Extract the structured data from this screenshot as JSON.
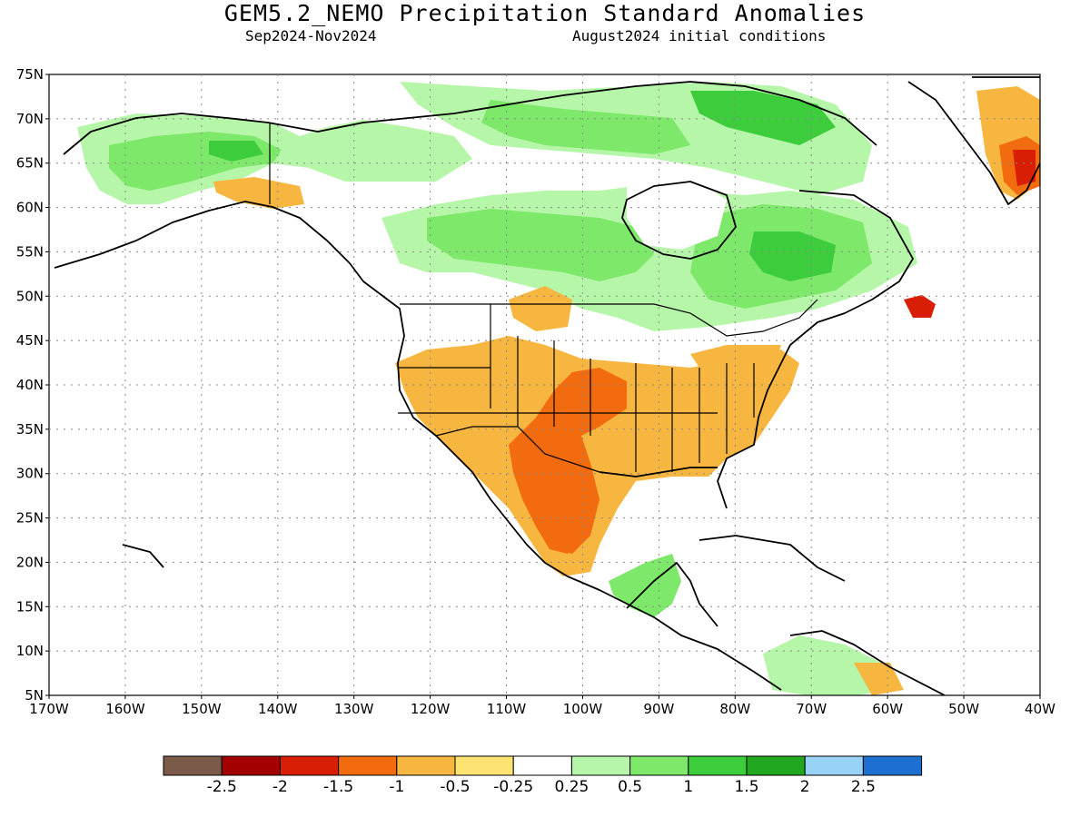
{
  "header": {
    "title": "GEM5.2_NEMO Precipitation Standard Anomalies",
    "period": "Sep2024-Nov2024",
    "init": "August2024 initial conditions"
  },
  "map": {
    "lon_range": [
      -170,
      -40
    ],
    "lat_range": [
      5,
      75
    ],
    "lat_ticks": [
      "75N",
      "70N",
      "65N",
      "60N",
      "55N",
      "50N",
      "45N",
      "40N",
      "35N",
      "30N",
      "25N",
      "20N",
      "15N",
      "10N",
      "5N"
    ],
    "lon_ticks": [
      "170W",
      "160W",
      "150W",
      "140W",
      "130W",
      "120W",
      "110W",
      "100W",
      "90W",
      "80W",
      "70W",
      "60W",
      "50W",
      "40W"
    ],
    "grid": "dotted"
  },
  "colorbar": {
    "colors": [
      "#7b5a4a",
      "#a30000",
      "#d81e05",
      "#f26b0f",
      "#f7b640",
      "#fde371",
      "#ffffff",
      "#b6f6a8",
      "#7de869",
      "#3ccc3c",
      "#22a81e",
      "#98d2f6",
      "#1e6fd2"
    ],
    "labels": [
      "-2.5",
      "-2",
      "-1.5",
      "-1",
      "-0.5",
      "-0.25",
      "0.25",
      "0.5",
      "1",
      "1.5",
      "2",
      "2.5"
    ]
  },
  "colors": {
    "dry_moderate": "#f7b640",
    "dry_strong": "#f26b0f",
    "dry_very_strong": "#d81e05",
    "dry_weak": "#fde371",
    "wet_weak": "#b6f6a8",
    "wet_moderate": "#7de869",
    "wet_strong": "#3ccc3c",
    "wet_very_strong": "#22a81e",
    "wet_extreme": "#98d2f6"
  }
}
